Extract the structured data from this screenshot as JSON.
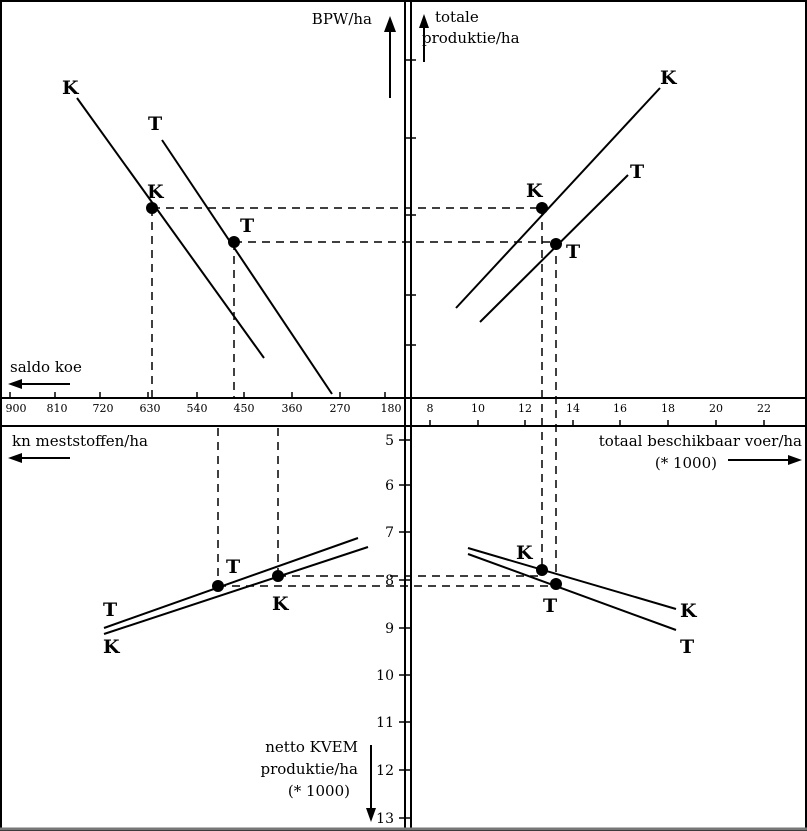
{
  "labels": {
    "bpw": "BPW/ha",
    "totale_line1": "totale",
    "totale_line2": "produktie/ha",
    "saldo": "saldo koe",
    "kn": "kn meststoffen/ha",
    "voer": "totaal beschikbaar voer/ha",
    "voer_unit": "(* 1000)",
    "kvem_line1": "netto KVEM",
    "kvem_line2": "produktie/ha",
    "kvem_unit": "(* 1000)"
  },
  "saldo_ticks": [
    "900",
    "810",
    "720",
    "630",
    "540",
    "450",
    "360",
    "270",
    "180"
  ],
  "voer_ticks": [
    "8",
    "10",
    "12",
    "14",
    "16",
    "18",
    "20",
    "22"
  ],
  "kvem_ticks": [
    "5",
    "6",
    "7",
    "8",
    "9",
    "10",
    "11",
    "12",
    "13"
  ],
  "curve_labels": {
    "k": "K",
    "t": "T"
  }
}
